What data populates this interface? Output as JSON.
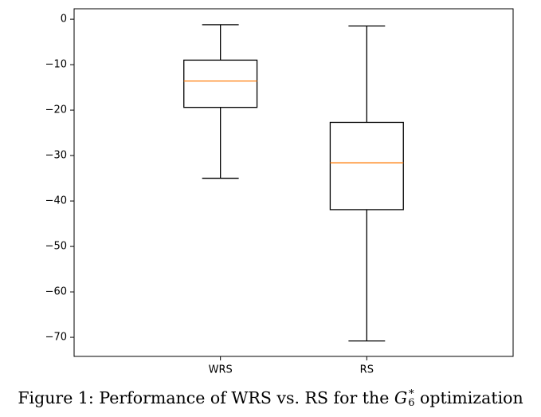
{
  "chart_data": {
    "type": "boxplot",
    "categories": [
      "WRS",
      "RS"
    ],
    "boxes": [
      {
        "label": "WRS",
        "whisker_low": -35.0,
        "q1": -19.4,
        "median": -13.6,
        "q3": -9.0,
        "whisker_high": -1.2
      },
      {
        "label": "RS",
        "whisker_low": -70.8,
        "q1": -41.9,
        "median": -31.6,
        "q3": -22.7,
        "whisker_high": -1.5
      }
    ],
    "ylim": [
      -74.2,
      2.3
    ],
    "yticks": [
      0,
      -10,
      -20,
      -30,
      -40,
      -50,
      -60,
      -70
    ],
    "ytick_labels": [
      "0",
      "−10",
      "−20",
      "−30",
      "−40",
      "−50",
      "−60",
      "−70"
    ],
    "grid": false,
    "colors": {
      "box": "#000000",
      "median": "#ff7f0e"
    }
  },
  "caption": {
    "prefix": "Figure 1: Performance of WRS vs. RS for the ",
    "symbol": "G",
    "superscript": "*",
    "subscript": "6",
    "suffix": " optimization"
  }
}
